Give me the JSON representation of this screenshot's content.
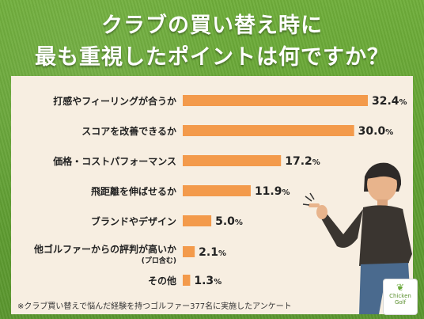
{
  "title_lines": [
    "クラブの買い替え時に",
    "最も重視したポイントは何ですか？"
  ],
  "footnote": "※クラブ買い替えで悩んだ経験を持つゴルファー377名に実施したアンケート",
  "logo": {
    "line1": "Chicken",
    "line2": "Golf",
    "icon": "leaf-icon"
  },
  "colors": {
    "bar": "#f39a4b",
    "panel": "#f7eee1",
    "background": "#64a334"
  },
  "chart_data": {
    "type": "bar",
    "orientation": "horizontal",
    "categories": [
      "打感やフィーリングが合うか",
      "スコアを改善できるか",
      "価格・コストパフォーマンス",
      "飛距離を伸ばせるか",
      "ブランドやデザイン",
      "他ゴルファーからの評判が高いか",
      "その他"
    ],
    "category_sublabels": [
      "",
      "",
      "",
      "",
      "",
      "(プロ含む)",
      ""
    ],
    "values": [
      32.4,
      30.0,
      17.2,
      11.9,
      5.0,
      2.1,
      1.3
    ],
    "value_labels": [
      "32.4",
      "30.0",
      "17.2",
      "11.9",
      "5.0",
      "2.1",
      "1.3"
    ],
    "unit": "%",
    "title": "クラブの買い替え時に最も重視したポイントは何ですか？",
    "xlim": [
      0,
      32.4
    ],
    "grid": false,
    "legend": "none"
  }
}
